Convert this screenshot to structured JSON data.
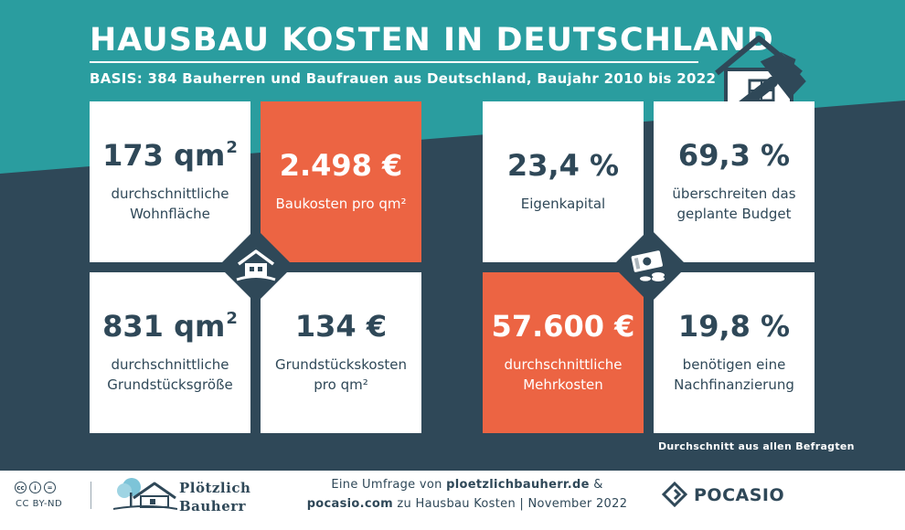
{
  "header": {
    "title": "HAUSBAU KOSTEN IN DEUTSCHLAND",
    "subtitle": "BASIS: 384 Bauherren und Baufrauen aus Deutschland, Baujahr 2010 bis 2022"
  },
  "colors": {
    "teal": "#2a9d9f",
    "navy": "#2f4858",
    "accent": "#ec6443",
    "white": "#ffffff"
  },
  "icons": [
    "house-hammer-icon",
    "house-icon",
    "money-icon",
    "cc-icon",
    "pocasio-logo-icon"
  ],
  "left_group": {
    "wohnflaeche": {
      "value": "173 qm",
      "sup": "2",
      "label1": "durchschnittliche",
      "label2": "Wohnfläche"
    },
    "baukosten": {
      "value": "2.498 €",
      "label1": "Baukosten pro qm²"
    },
    "grundstueck": {
      "value": "831 qm",
      "sup": "2",
      "label1": "durchschnittliche",
      "label2": "Grundstücksgröße"
    },
    "grundkosten": {
      "value": "134 €",
      "label1": "Grundstückskosten",
      "label2": "pro qm²"
    }
  },
  "right_group": {
    "eigenkapital": {
      "value": "23,4 %",
      "label1": "Eigenkapital"
    },
    "budget": {
      "value": "69,3 %",
      "label1": "überschreiten das",
      "label2": "geplante Budget"
    },
    "mehrkosten": {
      "value": "57.600 €",
      "label1": "durchschnittliche",
      "label2": "Mehrkosten"
    },
    "nachfinanzierung": {
      "value": "19,8 %",
      "label1": "benötigen eine",
      "label2": "Nachfinanzierung"
    }
  },
  "note": "Durchschnitt aus allen Befragten",
  "footer": {
    "license": "CC BY-ND",
    "brand1": "Plötzlich",
    "brand2": "Bauherr",
    "survey_pre": "Eine Umfrage von",
    "survey_site1": "ploetzlichbauherr.de",
    "survey_amp": "&",
    "survey_site2": "pocasio.com",
    "survey_post": "zu Hausbau Kosten | November 2022",
    "pocasio": "POCASIO"
  }
}
